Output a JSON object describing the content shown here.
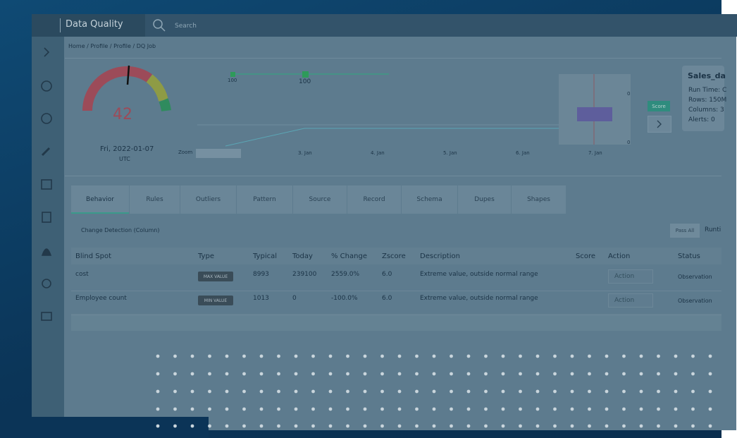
{
  "app": {
    "title": "Data Quality",
    "search_placeholder": "Search"
  },
  "breadcrumb": "Home / Profile / Profile / DQ Job",
  "gauge": {
    "score": "42",
    "date": "Fri, 2022-01-07",
    "timezone": "UTC"
  },
  "chart": {
    "point_labels": [
      "100",
      "100"
    ],
    "zoom_label": "Zoom",
    "x_labels": [
      "3. Jan",
      "4. Jan",
      "5. Jan",
      "6. Jan",
      "7. Jan"
    ],
    "side_axis_labels": [
      "0",
      "0"
    ],
    "score_button": "Score"
  },
  "summary": {
    "title": "Sales_da",
    "lines": [
      "Run Time: C",
      "Rows: 150M",
      "Columns: 3",
      "Alerts: 0"
    ]
  },
  "tabs": [
    "Behavior",
    "Rules",
    "Outliers",
    "Pattern",
    "Source",
    "Record",
    "Schema",
    "Dupes",
    "Shapes"
  ],
  "section": {
    "title": "Change Detection (Column)",
    "pass_all": "Pass All",
    "runtime": "Runti"
  },
  "table": {
    "headers": [
      "Blind Spot",
      "Type",
      "Typical",
      "Today",
      "% Change",
      "Zscore",
      "Description",
      "Score",
      "Action",
      "Status"
    ],
    "rows": [
      {
        "blind_spot": "cost",
        "type": "MAX VALUE",
        "typical": "8993",
        "today": "239100",
        "change": "2559.0%",
        "zscore": "6.0",
        "description": "Extreme value, outside normal range",
        "action": "Action",
        "status": "Observation"
      },
      {
        "blind_spot": "Employee count",
        "type": "MIN VALUE",
        "typical": "1013",
        "today": "0",
        "change": "-100.0%",
        "zscore": "6.0",
        "description": "Extreme value, outside normal range",
        "action": "Action",
        "status": "Observation"
      }
    ]
  }
}
